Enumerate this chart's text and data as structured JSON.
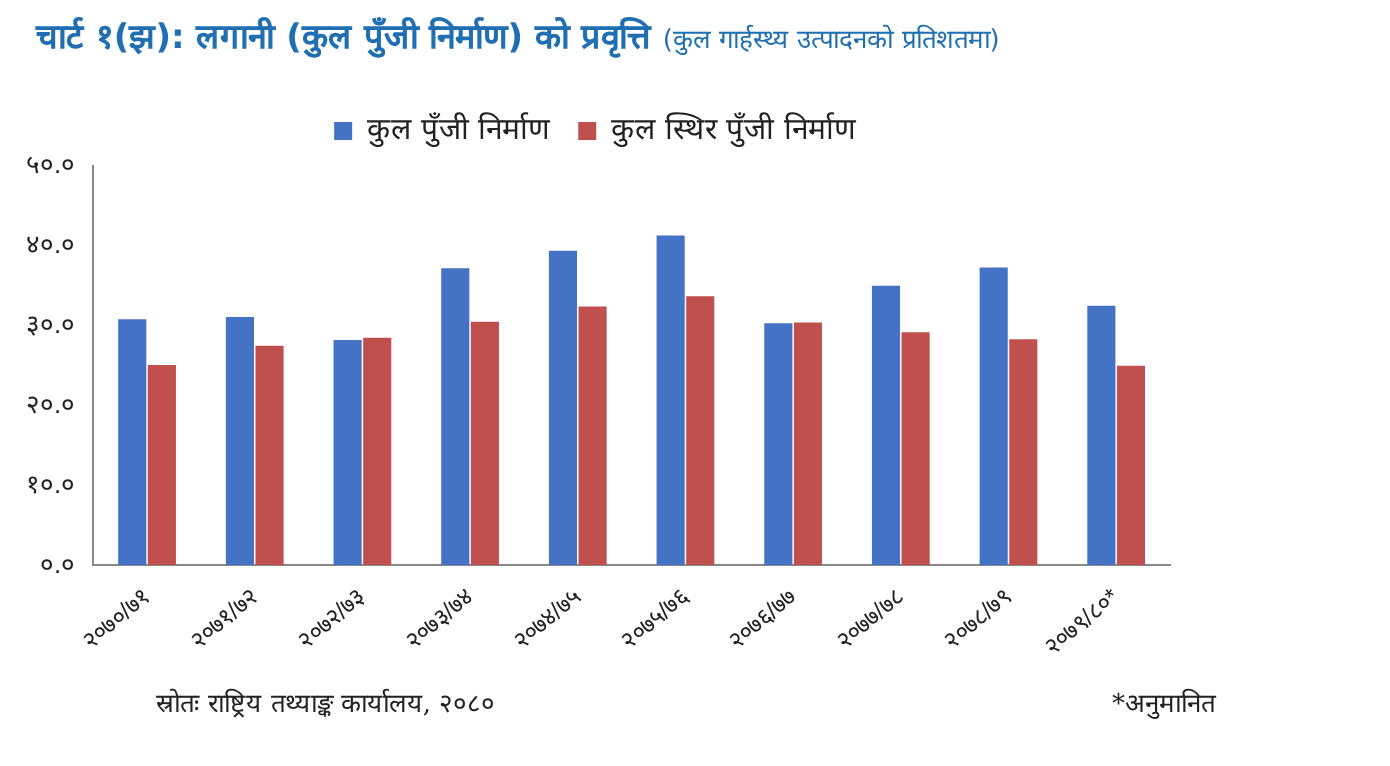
{
  "chart_data": {
    "type": "bar",
    "title": "चार्ट १(झ): लगानी (कुल पुँजी निर्माण) को प्रवृत्ति",
    "subtitle": "(कुल गार्हस्थ्य उत्पादनको प्रतिशतमा)",
    "categories": [
      "२०७०/७१",
      "२०७१/७२",
      "२०७२/७३",
      "२०७३/७४",
      "२०७४/७५",
      "२०७५/७६",
      "२०७६/७७",
      "२०७७/७८",
      "२०७८/७९",
      "२०७९/८०*"
    ],
    "series": [
      {
        "name": "कुल पुँजी निर्माण",
        "color": "#4472c4",
        "values": [
          30.8,
          31.1,
          28.2,
          37.2,
          39.4,
          41.3,
          30.3,
          35.0,
          37.3,
          32.5
        ]
      },
      {
        "name": "कुल स्थिर पुँजी निर्माण",
        "color": "#c0504d",
        "values": [
          25.1,
          27.5,
          28.5,
          30.5,
          32.4,
          33.7,
          30.4,
          29.2,
          28.3,
          25.0
        ]
      }
    ],
    "ylim": [
      0,
      50
    ],
    "yticks": [
      {
        "value": 0,
        "label": "०.०"
      },
      {
        "value": 10,
        "label": "१०.०"
      },
      {
        "value": 20,
        "label": "२०.०"
      },
      {
        "value": 30,
        "label": "३०.०"
      },
      {
        "value": 40,
        "label": "४०.०"
      },
      {
        "value": 50,
        "label": "५०.०"
      }
    ],
    "grid": false,
    "legend": "top",
    "annotations": [
      "स्रोतः राष्ट्रिय तथ्याङ्क कार्यालय, २०८०",
      "*अनुमानित"
    ]
  }
}
